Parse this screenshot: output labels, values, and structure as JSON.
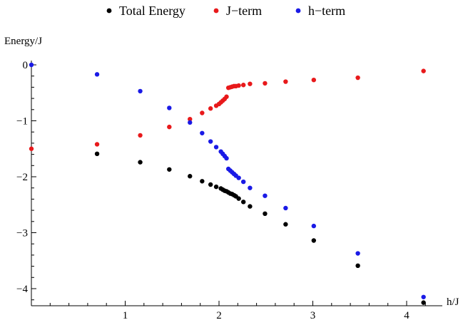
{
  "chart_data": {
    "type": "scatter",
    "title": "",
    "xlabel": "h/J",
    "ylabel": "Energy/J",
    "xlim": [
      0,
      4.2
    ],
    "ylim": [
      -4.4,
      0.1
    ],
    "x_ticks": [
      1,
      2,
      3,
      4
    ],
    "x_minor_step": 0.2,
    "y_ticks": [
      0,
      -1,
      -2,
      -3,
      -4
    ],
    "y_minor_step": 0.2,
    "grid": false,
    "legend_position": "top-center",
    "series": [
      {
        "name": "Total Energy",
        "color": "#000000",
        "points": [
          [
            0.7,
            -1.59
          ],
          [
            1.16,
            -1.74
          ],
          [
            1.47,
            -1.87
          ],
          [
            1.69,
            -1.99
          ],
          [
            1.82,
            -2.08
          ],
          [
            1.91,
            -2.14
          ],
          [
            1.97,
            -2.18
          ],
          [
            2.02,
            -2.21
          ],
          [
            2.04,
            -2.23
          ],
          [
            2.06,
            -2.25
          ],
          [
            2.08,
            -2.26
          ],
          [
            2.1,
            -2.28
          ],
          [
            2.12,
            -2.3
          ],
          [
            2.14,
            -2.31
          ],
          [
            2.16,
            -2.33
          ],
          [
            2.18,
            -2.35
          ],
          [
            2.21,
            -2.39
          ],
          [
            2.26,
            -2.45
          ],
          [
            2.33,
            -2.53
          ],
          [
            2.49,
            -2.66
          ],
          [
            2.71,
            -2.85
          ],
          [
            3.01,
            -3.14
          ],
          [
            3.48,
            -3.59
          ],
          [
            4.18,
            -4.25
          ]
        ]
      },
      {
        "name": "J−term",
        "color": "#e8191b",
        "points": [
          [
            0.0,
            -1.5
          ],
          [
            0.7,
            -1.42
          ],
          [
            1.16,
            -1.26
          ],
          [
            1.47,
            -1.11
          ],
          [
            1.69,
            -0.97
          ],
          [
            1.82,
            -0.86
          ],
          [
            1.91,
            -0.78
          ],
          [
            1.97,
            -0.73
          ],
          [
            2.0,
            -0.7
          ],
          [
            2.02,
            -0.67
          ],
          [
            2.04,
            -0.64
          ],
          [
            2.06,
            -0.61
          ],
          [
            2.08,
            -0.57
          ],
          [
            2.1,
            -0.41
          ],
          [
            2.12,
            -0.4
          ],
          [
            2.14,
            -0.39
          ],
          [
            2.16,
            -0.38
          ],
          [
            2.18,
            -0.38
          ],
          [
            2.21,
            -0.37
          ],
          [
            2.26,
            -0.36
          ],
          [
            2.33,
            -0.34
          ],
          [
            2.49,
            -0.33
          ],
          [
            2.71,
            -0.3
          ],
          [
            3.01,
            -0.27
          ],
          [
            3.48,
            -0.23
          ],
          [
            4.18,
            -0.11
          ]
        ]
      },
      {
        "name": "h−term",
        "color": "#1a1ae6",
        "points": [
          [
            0.0,
            0.0
          ],
          [
            0.7,
            -0.17
          ],
          [
            1.16,
            -0.47
          ],
          [
            1.47,
            -0.77
          ],
          [
            1.69,
            -1.03
          ],
          [
            1.82,
            -1.22
          ],
          [
            1.91,
            -1.37
          ],
          [
            1.97,
            -1.47
          ],
          [
            2.02,
            -1.55
          ],
          [
            2.04,
            -1.59
          ],
          [
            2.06,
            -1.63
          ],
          [
            2.08,
            -1.67
          ],
          [
            2.1,
            -1.86
          ],
          [
            2.12,
            -1.89
          ],
          [
            2.14,
            -1.92
          ],
          [
            2.16,
            -1.95
          ],
          [
            2.18,
            -1.98
          ],
          [
            2.21,
            -2.02
          ],
          [
            2.26,
            -2.09
          ],
          [
            2.33,
            -2.2
          ],
          [
            2.49,
            -2.34
          ],
          [
            2.71,
            -2.56
          ],
          [
            3.01,
            -2.88
          ],
          [
            3.48,
            -3.37
          ],
          [
            4.18,
            -4.15
          ]
        ]
      }
    ]
  }
}
